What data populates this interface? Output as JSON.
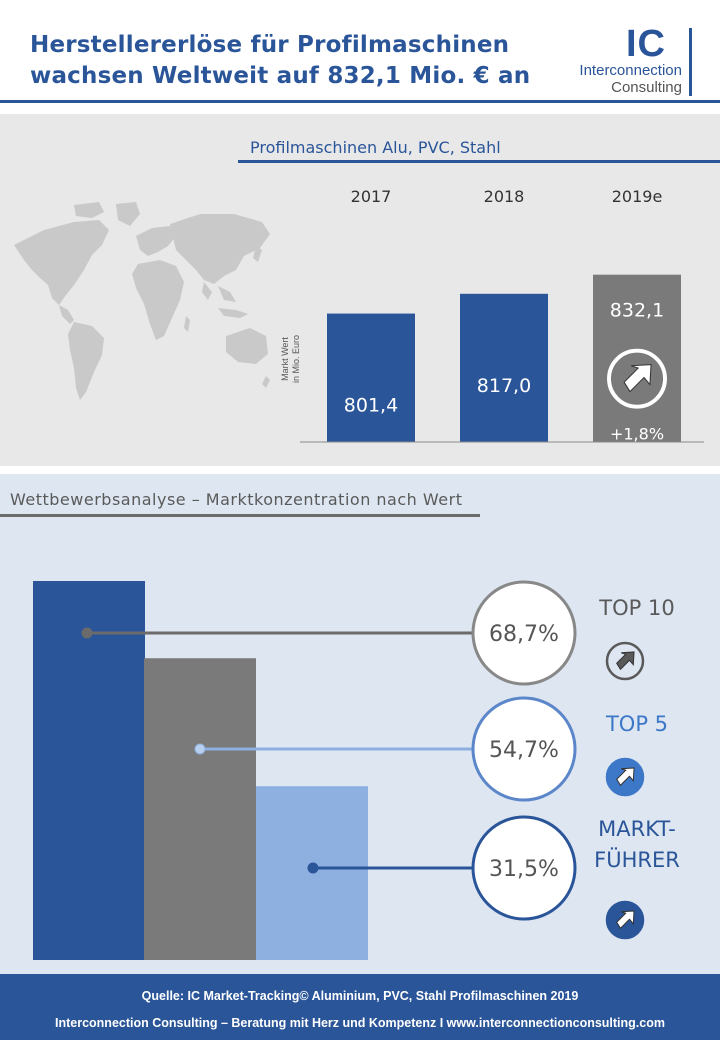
{
  "header": {
    "title_line1": "Herstellererlöse für Profilmaschinen",
    "title_line2": "wachsen Weltweit auf 832,1 Mio. € an",
    "logo_mark": "IC",
    "logo_line1": "Interconnection",
    "logo_line2": "Consulting"
  },
  "colors": {
    "brand_blue": "#2a5599",
    "gray": "#7a7a7a",
    "light_blue": "#8db0e0",
    "dark_gray": "#6b6b6b"
  },
  "chart_data": [
    {
      "type": "bar",
      "title": "Profilmaschinen Alu, PVC, Stahl",
      "ylabel": "Markt Wert in Mio. Euro",
      "ylabel_lines": [
        "Markt Wert",
        "in Mio. Euro"
      ],
      "categories": [
        "2017",
        "2018",
        "2019e"
      ],
      "values": [
        801.4,
        817.0,
        832.1
      ],
      "value_labels": [
        "801,4",
        "817,0",
        "832,1"
      ],
      "growth_label": "+1,8%",
      "highlight_icon": "arrow-up-right-circle-icon"
    },
    {
      "type": "bar",
      "title": "Wettbewerbsanalyse – Marktkonzentration nach Wert",
      "categories": [
        "TOP 10",
        "TOP 5",
        "MARKT-FÜHRER"
      ],
      "category_lines": [
        [
          "TOP 10"
        ],
        [
          "TOP 5"
        ],
        [
          "MARKT-",
          "FÜHRER"
        ]
      ],
      "values": [
        68.7,
        54.7,
        31.5
      ],
      "value_labels": [
        "68,7%",
        "54,7%",
        "31,5%"
      ],
      "series_colors": [
        "#2a5599",
        "#7a7a7a",
        "#8db0e0"
      ],
      "icons": [
        "arrow-up-right-circle-icon",
        "arrow-up-right-circle-icon",
        "arrow-up-right-circle-icon"
      ]
    }
  ],
  "footer": {
    "line1": "Quelle: IC Market-Tracking© Aluminium, PVC, Stahl Profilmaschinen 2019",
    "line2": "Interconnection Consulting – Beratung mit Herz und Kompetenz  I  www.interconnectionconsulting.com"
  }
}
